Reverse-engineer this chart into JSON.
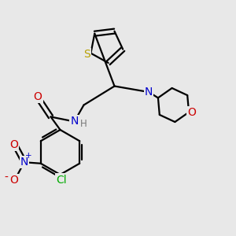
{
  "bg_color": "#e8e8e8",
  "bond_color": "#000000",
  "atom_colors": {
    "S": "#b8a000",
    "N": "#0000cc",
    "O": "#cc0000",
    "Cl": "#00aa00",
    "C": "#000000",
    "H": "#777777"
  }
}
